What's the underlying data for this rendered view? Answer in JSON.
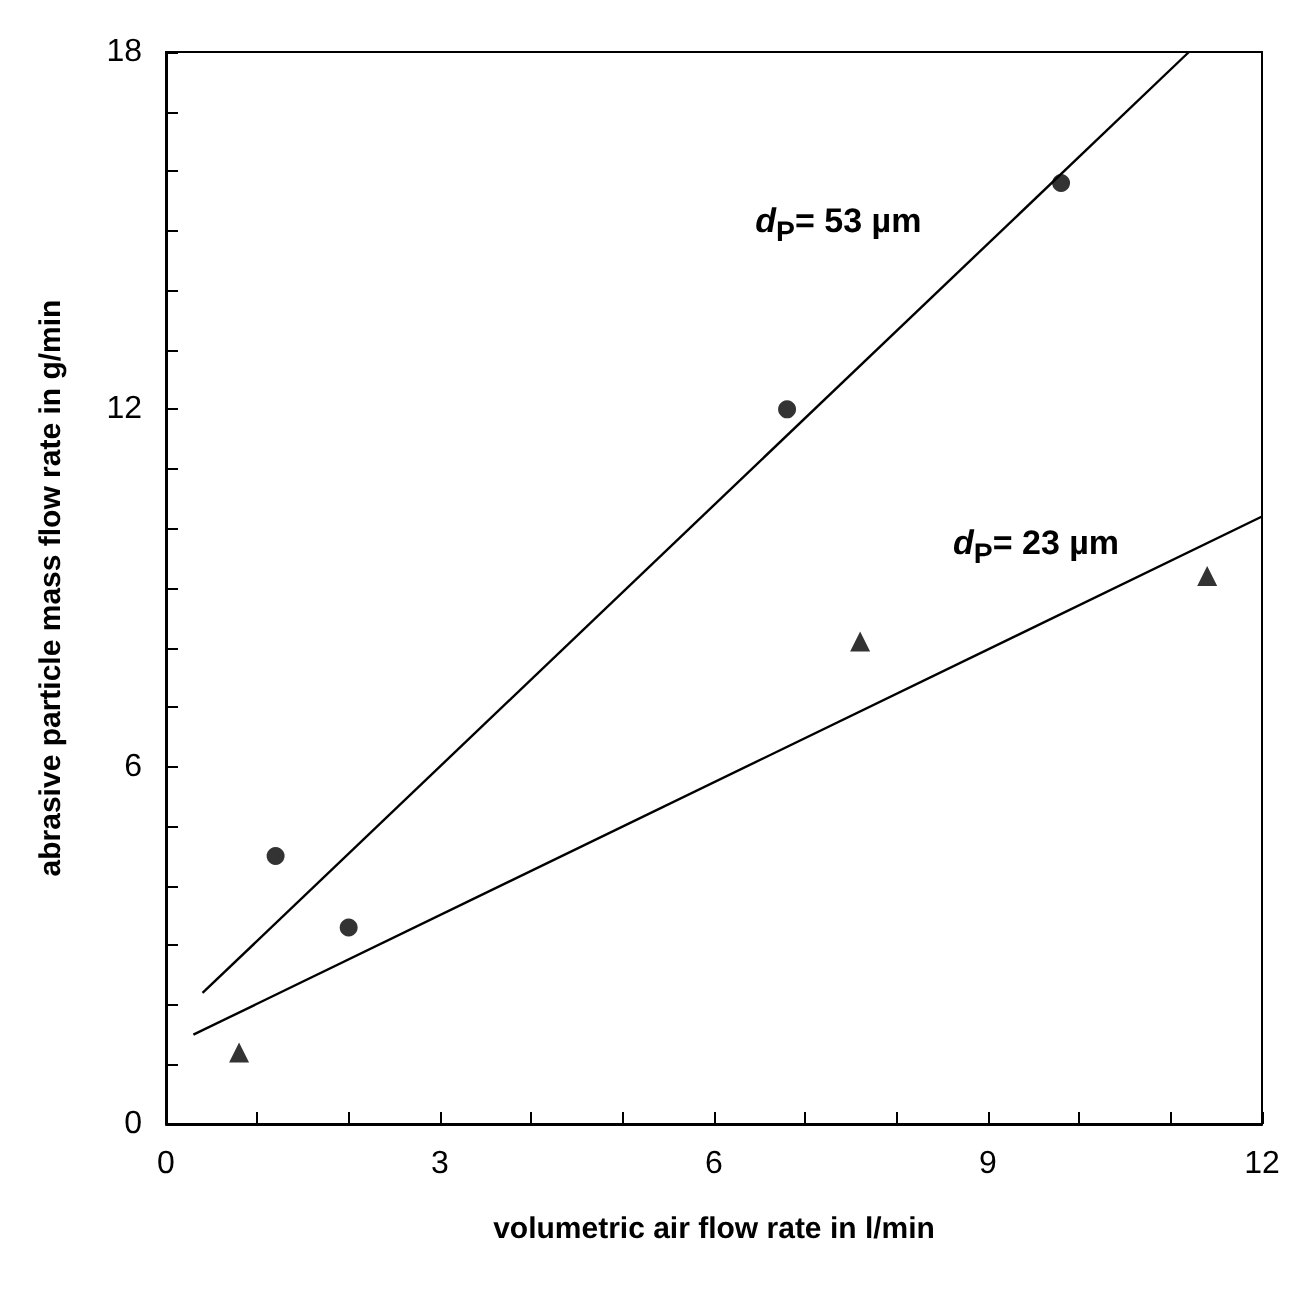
{
  "chart_data": {
    "type": "scatter",
    "xlabel": "volumetric air flow rate in l/min",
    "ylabel": "abrasive particle mass flow rate in g/min",
    "xlim": [
      0,
      12
    ],
    "xticks": [
      0,
      {
        "value": 1,
        "label": null
      },
      {
        "value": 2,
        "label": null
      },
      3,
      {
        "value": 4,
        "label": null
      },
      {
        "value": 5,
        "label": null
      },
      6,
      {
        "value": 7,
        "label": null
      },
      {
        "value": 8,
        "label": null
      },
      9,
      {
        "value": 10,
        "label": null
      },
      {
        "value": 11,
        "label": null
      },
      12
    ],
    "ylim": [
      0,
      18
    ],
    "yticks": [
      0,
      {
        "value": 1,
        "label": null
      },
      {
        "value": 2,
        "label": null
      },
      {
        "value": 3,
        "label": null
      },
      {
        "value": 4,
        "label": null
      },
      {
        "value": 5,
        "label": null
      },
      6,
      {
        "value": 7,
        "label": null
      },
      {
        "value": 8,
        "label": null
      },
      {
        "value": 9,
        "label": null
      },
      {
        "value": 10,
        "label": null
      },
      {
        "value": 11,
        "label": null
      },
      12,
      {
        "value": 13,
        "label": null
      },
      {
        "value": 14,
        "label": null
      },
      {
        "value": 15,
        "label": null
      },
      {
        "value": 16,
        "label": null
      },
      {
        "value": 17,
        "label": null
      },
      18
    ],
    "grid": false,
    "series": [
      {
        "marker": "circle",
        "color": "#000000",
        "x": [
          1.2,
          2.0,
          6.8,
          9.8
        ],
        "values": [
          4.5,
          3.3,
          12.0,
          15.8
        ]
      },
      {
        "marker": "triangle",
        "color": "#000000",
        "x": [
          0.8,
          7.6,
          11.4
        ],
        "values": [
          1.2,
          8.1,
          9.2
        ]
      },
      {
        "type": "line",
        "name": "d$_{P}$= 53 µm",
        "marker": "none",
        "color": "#000000",
        "x": [
          0.4,
          11.2
        ],
        "values": [
          2.2,
          18
        ]
      },
      {
        "type": "line",
        "name": "d$_{P}$= 23 µm",
        "marker": "none",
        "color": "#000000",
        "x": [
          0.3,
          12
        ],
        "values": [
          1.5,
          10.2
        ]
      }
    ]
  }
}
